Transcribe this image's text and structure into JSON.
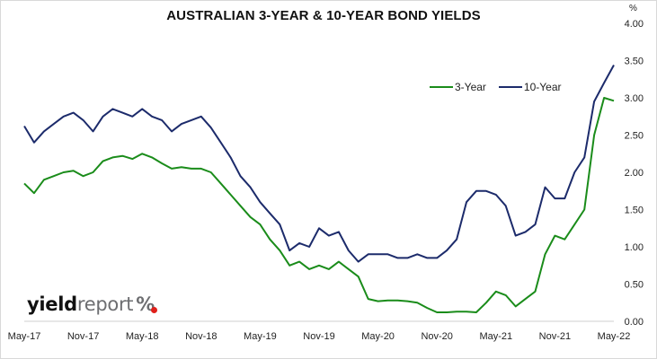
{
  "chart_data": {
    "type": "line",
    "title": "AUSTRALIAN 3-YEAR & 10-YEAR BOND YIELDS",
    "unit": "%",
    "x_tick_labels": [
      "May-17",
      "Nov-17",
      "May-18",
      "Nov-18",
      "May-19",
      "Nov-19",
      "May-20",
      "Nov-20",
      "May-21",
      "Nov-21",
      "May-22"
    ],
    "y_tick_labels": [
      "0.00",
      "0.50",
      "1.00",
      "1.50",
      "2.00",
      "2.50",
      "3.00",
      "3.50",
      "4.00"
    ],
    "ylim": [
      0,
      4
    ],
    "y_axis_side": "right",
    "grid": false,
    "legend_position": "upper-right-inside",
    "x": [
      "May-17",
      "Jun-17",
      "Jul-17",
      "Aug-17",
      "Sep-17",
      "Oct-17",
      "Nov-17",
      "Dec-17",
      "Jan-18",
      "Feb-18",
      "Mar-18",
      "Apr-18",
      "May-18",
      "Jun-18",
      "Jul-18",
      "Aug-18",
      "Sep-18",
      "Oct-18",
      "Nov-18",
      "Dec-18",
      "Jan-19",
      "Feb-19",
      "Mar-19",
      "Apr-19",
      "May-19",
      "Jun-19",
      "Jul-19",
      "Aug-19",
      "Sep-19",
      "Oct-19",
      "Nov-19",
      "Dec-19",
      "Jan-20",
      "Feb-20",
      "Mar-20",
      "Apr-20",
      "May-20",
      "Jun-20",
      "Jul-20",
      "Aug-20",
      "Sep-20",
      "Oct-20",
      "Nov-20",
      "Dec-20",
      "Jan-21",
      "Feb-21",
      "Mar-21",
      "Apr-21",
      "May-21",
      "Jun-21",
      "Jul-21",
      "Aug-21",
      "Sep-21",
      "Oct-21",
      "Nov-21",
      "Dec-21",
      "Jan-22",
      "Feb-22",
      "Mar-22",
      "Apr-22",
      "May-22"
    ],
    "series": [
      {
        "name": "3-Year",
        "color": "#1a8c1a",
        "values": [
          1.85,
          1.72,
          1.9,
          1.95,
          2.0,
          2.02,
          1.95,
          2.0,
          2.15,
          2.2,
          2.22,
          2.18,
          2.25,
          2.2,
          2.12,
          2.05,
          2.07,
          2.05,
          2.05,
          2.0,
          1.85,
          1.7,
          1.55,
          1.4,
          1.3,
          1.1,
          0.95,
          0.75,
          0.8,
          0.7,
          0.75,
          0.7,
          0.8,
          0.7,
          0.6,
          0.3,
          0.27,
          0.28,
          0.28,
          0.27,
          0.25,
          0.18,
          0.12,
          0.12,
          0.13,
          0.13,
          0.12,
          0.25,
          0.4,
          0.35,
          0.2,
          0.3,
          0.4,
          0.9,
          1.15,
          1.1,
          1.3,
          1.5,
          2.5,
          3.0,
          2.96
        ]
      },
      {
        "name": "10-Year",
        "color": "#1c2b6b",
        "values": [
          2.62,
          2.4,
          2.55,
          2.65,
          2.75,
          2.8,
          2.7,
          2.55,
          2.75,
          2.85,
          2.8,
          2.75,
          2.85,
          2.75,
          2.7,
          2.55,
          2.65,
          2.7,
          2.75,
          2.6,
          2.4,
          2.2,
          1.95,
          1.8,
          1.6,
          1.45,
          1.3,
          0.95,
          1.05,
          1.0,
          1.25,
          1.15,
          1.2,
          0.95,
          0.8,
          0.9,
          0.9,
          0.9,
          0.85,
          0.85,
          0.9,
          0.85,
          0.85,
          0.95,
          1.1,
          1.6,
          1.75,
          1.75,
          1.7,
          1.55,
          1.15,
          1.2,
          1.3,
          1.8,
          1.65,
          1.65,
          2.0,
          2.2,
          2.95,
          3.2,
          3.44
        ]
      }
    ]
  },
  "branding": {
    "logo_part1": "yield",
    "logo_part2": "report",
    "logo_symbol": "%"
  }
}
